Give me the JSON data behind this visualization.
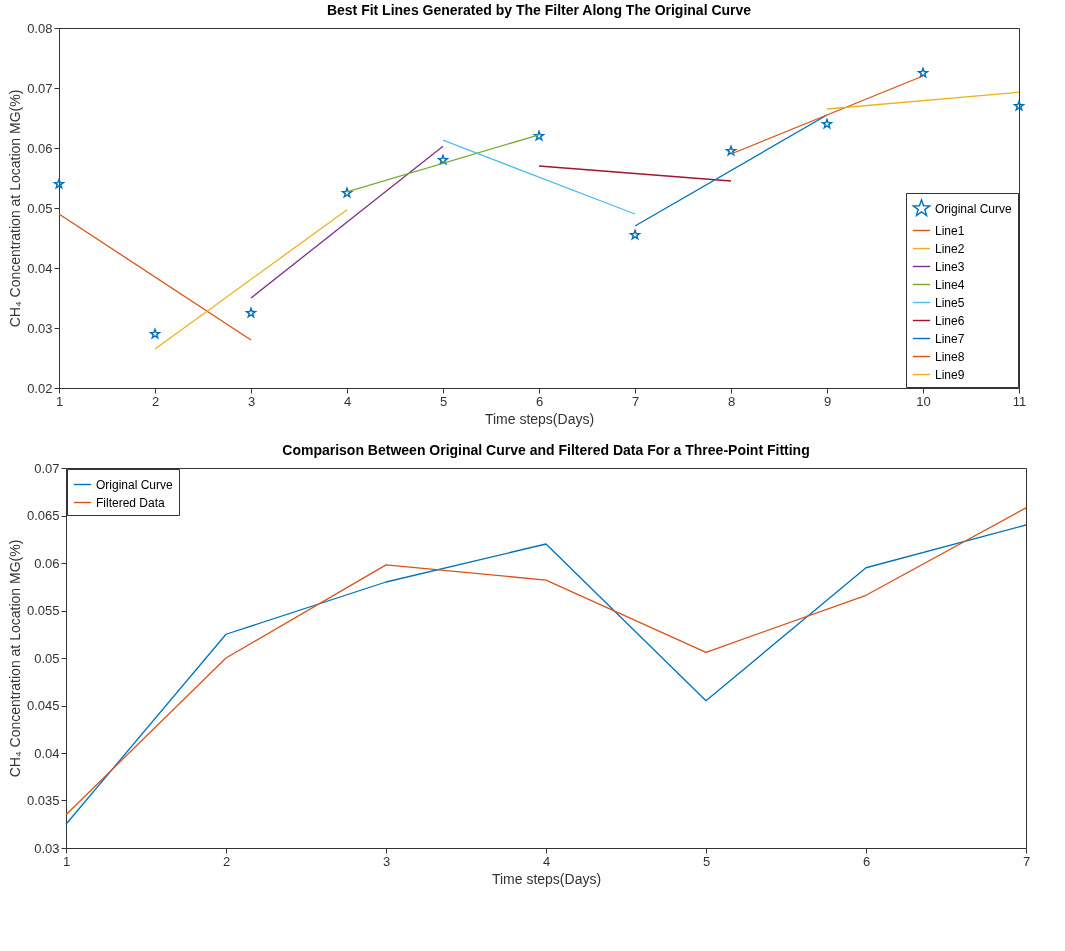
{
  "chart_data": [
    {
      "type": "line",
      "title": "Best Fit Lines Generated by The Filter Along The Original Curve",
      "xlabel": "Time steps(Days)",
      "ylabel": "CH₄ Concentration at Location MG(%)",
      "xlim": [
        1,
        11
      ],
      "xticks": [
        1,
        2,
        3,
        4,
        5,
        6,
        7,
        8,
        9,
        10,
        11
      ],
      "ylim": [
        0.02,
        0.08
      ],
      "yticks": [
        0.02,
        0.03,
        0.04,
        0.05,
        0.06,
        0.07,
        0.08
      ],
      "legend": "bottom right",
      "series": [
        {
          "name": "Original Curve",
          "type": "scatter",
          "marker": "star",
          "color": "#0072bd",
          "x": [
            1,
            2,
            3,
            4,
            5,
            6,
            7,
            8,
            9,
            10,
            11
          ],
          "values": [
            0.054,
            0.029,
            0.0325,
            0.0525,
            0.058,
            0.062,
            0.0455,
            0.0595,
            0.064,
            0.0725,
            0.067
          ]
        },
        {
          "name": "Line1",
          "type": "line",
          "color": "#d95319",
          "x": [
            1,
            3
          ],
          "values": [
            0.049,
            0.028
          ]
        },
        {
          "name": "Line2",
          "type": "line",
          "color": "#edb120",
          "x": [
            2,
            4
          ],
          "values": [
            0.0265,
            0.0497
          ]
        },
        {
          "name": "Line3",
          "type": "line",
          "color": "#7e2f8e",
          "x": [
            3,
            5
          ],
          "values": [
            0.035,
            0.0603
          ]
        },
        {
          "name": "Line4",
          "type": "line",
          "color": "#77ac30",
          "x": [
            4,
            6
          ],
          "values": [
            0.0527,
            0.0622
          ]
        },
        {
          "name": "Line5",
          "type": "line",
          "color": "#4dbeee",
          "x": [
            5,
            7
          ],
          "values": [
            0.0613,
            0.049
          ]
        },
        {
          "name": "Line6",
          "type": "line",
          "color": "#a2142f",
          "x": [
            6,
            8
          ],
          "values": [
            0.057,
            0.0545
          ]
        },
        {
          "name": "Line7",
          "type": "line",
          "color": "#0072bd",
          "x": [
            7,
            9
          ],
          "values": [
            0.047,
            0.0655
          ]
        },
        {
          "name": "Line8",
          "type": "line",
          "color": "#d95319",
          "x": [
            8,
            10
          ],
          "values": [
            0.059,
            0.072
          ]
        },
        {
          "name": "Line9",
          "type": "line",
          "color": "#edb120",
          "x": [
            9,
            11
          ],
          "values": [
            0.0665,
            0.0693
          ]
        }
      ]
    },
    {
      "type": "line",
      "title": "Comparison Between Original Curve and Filtered Data For a Three-Point Fitting",
      "xlabel": "Time steps(Days)",
      "ylabel": "CH₄ Concentration at Location MG(%)",
      "x": [
        1,
        2,
        3,
        4,
        5,
        6,
        7
      ],
      "xlim": [
        1,
        7
      ],
      "xticks": [
        1,
        2,
        3,
        4,
        5,
        6,
        7
      ],
      "ylim": [
        0.03,
        0.07
      ],
      "yticks": [
        0.03,
        0.035,
        0.04,
        0.045,
        0.05,
        0.055,
        0.06,
        0.065,
        0.07
      ],
      "legend": "top left",
      "series": [
        {
          "name": "Original Curve",
          "color": "#0072bd",
          "values": [
            0.0325,
            0.0525,
            0.058,
            0.062,
            0.0455,
            0.0595,
            0.064
          ]
        },
        {
          "name": "Filtered Data",
          "color": "#d95319",
          "values": [
            0.0335,
            0.05,
            0.0598,
            0.0582,
            0.0506,
            0.0566,
            0.0658
          ]
        }
      ]
    }
  ]
}
